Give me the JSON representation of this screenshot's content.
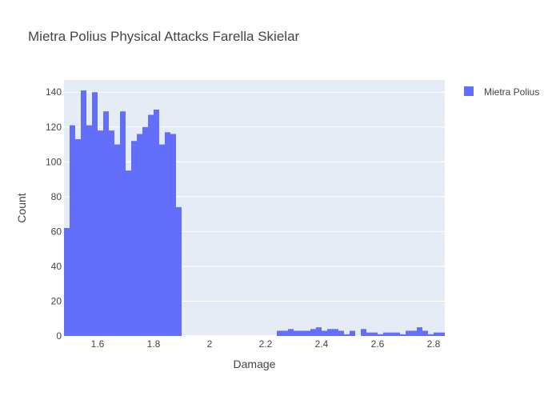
{
  "chart_data": {
    "type": "bar",
    "title": "Mietra Polius Physical Attacks Farella Skielar",
    "xlabel": "Damage",
    "ylabel": "Count",
    "xlim": [
      1.48,
      2.84
    ],
    "ylim": [
      0,
      147
    ],
    "x_ticks": [
      1.6,
      1.8,
      2,
      2.2,
      2.4,
      2.6,
      2.8
    ],
    "x_tick_labels": [
      "1.6",
      "1.8",
      "2",
      "2.2",
      "2.4",
      "2.6",
      "2.8"
    ],
    "y_ticks": [
      0,
      20,
      40,
      60,
      80,
      100,
      120,
      140
    ],
    "y_tick_labels": [
      "0",
      "20",
      "40",
      "60",
      "80",
      "100",
      "120",
      "140"
    ],
    "bin_width": 0.02,
    "series": [
      {
        "name": "Mietra Polius",
        "color": "#636efa",
        "bin_starts": [
          1.48,
          1.5,
          1.52,
          1.54,
          1.56,
          1.58,
          1.6,
          1.62,
          1.64,
          1.66,
          1.68,
          1.7,
          1.72,
          1.74,
          1.76,
          1.78,
          1.8,
          1.82,
          1.84,
          1.86,
          1.88,
          2.24,
          2.26,
          2.28,
          2.3,
          2.32,
          2.34,
          2.36,
          2.38,
          2.4,
          2.42,
          2.44,
          2.46,
          2.48,
          2.5,
          2.52,
          2.54,
          2.56,
          2.58,
          2.6,
          2.62,
          2.64,
          2.66,
          2.68,
          2.7,
          2.72,
          2.74,
          2.76,
          2.78,
          2.8,
          2.82
        ],
        "counts": [
          62,
          121,
          113,
          141,
          121,
          140,
          118,
          129,
          118,
          110,
          129,
          95,
          112,
          116,
          120,
          127,
          130,
          110,
          117,
          116,
          74,
          3,
          3,
          4,
          3,
          3,
          3,
          4,
          5,
          3,
          4,
          4,
          3,
          1,
          3,
          0,
          4,
          2,
          2,
          1,
          2,
          2,
          2,
          1,
          3,
          3,
          5,
          3,
          1,
          2,
          2
        ]
      }
    ],
    "legend": {
      "position": "top-right",
      "entries": [
        "Mietra Polius"
      ]
    },
    "grid": true,
    "background": "#e5ecf6"
  }
}
